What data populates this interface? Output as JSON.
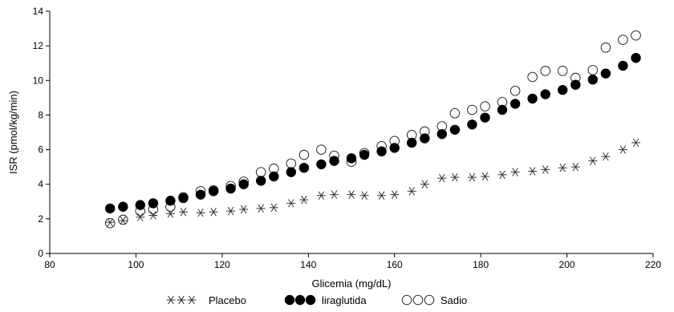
{
  "chart_data": {
    "type": "scatter",
    "xlabel": "Glicemia (mg/dL)",
    "ylabel": "ISR (pmol/kg/min)",
    "xlim": [
      80,
      220
    ],
    "ylim": [
      0,
      14
    ],
    "xticks": [
      80,
      100,
      120,
      140,
      160,
      180,
      200,
      220
    ],
    "yticks": [
      0,
      2,
      4,
      6,
      8,
      10,
      12,
      14
    ],
    "grid": false,
    "legend_position": "bottom",
    "series": [
      {
        "name": "Placebo",
        "marker": "asterisk",
        "points": [
          [
            94,
            1.8
          ],
          [
            97,
            1.9
          ],
          [
            101,
            2.1
          ],
          [
            104,
            2.2
          ],
          [
            108,
            2.3
          ],
          [
            111,
            2.4
          ],
          [
            115,
            2.35
          ],
          [
            118,
            2.4
          ],
          [
            122,
            2.45
          ],
          [
            125,
            2.55
          ],
          [
            129,
            2.6
          ],
          [
            132,
            2.65
          ],
          [
            136,
            2.9
          ],
          [
            139,
            3.1
          ],
          [
            143,
            3.35
          ],
          [
            146,
            3.4
          ],
          [
            150,
            3.4
          ],
          [
            153,
            3.35
          ],
          [
            157,
            3.35
          ],
          [
            160,
            3.4
          ],
          [
            164,
            3.6
          ],
          [
            167,
            4.0
          ],
          [
            171,
            4.35
          ],
          [
            174,
            4.4
          ],
          [
            178,
            4.4
          ],
          [
            181,
            4.45
          ],
          [
            185,
            4.55
          ],
          [
            188,
            4.7
          ],
          [
            192,
            4.75
          ],
          [
            195,
            4.85
          ],
          [
            199,
            4.95
          ],
          [
            202,
            5.0
          ],
          [
            206,
            5.35
          ],
          [
            209,
            5.6
          ],
          [
            213,
            6.0
          ],
          [
            216,
            6.4
          ]
        ]
      },
      {
        "name": "liraglutida",
        "marker": "filled-circle",
        "points": [
          [
            94,
            2.6
          ],
          [
            97,
            2.7
          ],
          [
            101,
            2.8
          ],
          [
            104,
            2.9
          ],
          [
            108,
            3.05
          ],
          [
            111,
            3.2
          ],
          [
            115,
            3.4
          ],
          [
            118,
            3.6
          ],
          [
            122,
            3.75
          ],
          [
            125,
            4.0
          ],
          [
            129,
            4.2
          ],
          [
            132,
            4.45
          ],
          [
            136,
            4.7
          ],
          [
            139,
            4.95
          ],
          [
            143,
            5.15
          ],
          [
            146,
            5.35
          ],
          [
            150,
            5.5
          ],
          [
            153,
            5.7
          ],
          [
            157,
            5.9
          ],
          [
            160,
            6.1
          ],
          [
            164,
            6.4
          ],
          [
            167,
            6.65
          ],
          [
            171,
            6.9
          ],
          [
            174,
            7.15
          ],
          [
            178,
            7.45
          ],
          [
            181,
            7.85
          ],
          [
            185,
            8.3
          ],
          [
            188,
            8.65
          ],
          [
            192,
            8.95
          ],
          [
            195,
            9.2
          ],
          [
            199,
            9.45
          ],
          [
            202,
            9.75
          ],
          [
            206,
            10.05
          ],
          [
            209,
            10.4
          ],
          [
            213,
            10.85
          ],
          [
            216,
            11.3
          ]
        ]
      },
      {
        "name": "Sadio",
        "marker": "open-circle",
        "points": [
          [
            94,
            1.75
          ],
          [
            97,
            1.95
          ],
          [
            101,
            2.45
          ],
          [
            104,
            2.55
          ],
          [
            108,
            2.7
          ],
          [
            111,
            3.25
          ],
          [
            115,
            3.6
          ],
          [
            118,
            3.65
          ],
          [
            122,
            3.9
          ],
          [
            125,
            4.15
          ],
          [
            129,
            4.7
          ],
          [
            132,
            4.9
          ],
          [
            136,
            5.2
          ],
          [
            139,
            5.7
          ],
          [
            143,
            6.0
          ],
          [
            146,
            5.65
          ],
          [
            150,
            5.3
          ],
          [
            153,
            5.8
          ],
          [
            157,
            6.2
          ],
          [
            160,
            6.5
          ],
          [
            164,
            6.85
          ],
          [
            167,
            7.05
          ],
          [
            171,
            7.35
          ],
          [
            174,
            8.1
          ],
          [
            178,
            8.3
          ],
          [
            181,
            8.5
          ],
          [
            185,
            8.75
          ],
          [
            188,
            9.4
          ],
          [
            192,
            10.2
          ],
          [
            195,
            10.55
          ],
          [
            199,
            10.55
          ],
          [
            202,
            10.15
          ],
          [
            206,
            10.6
          ],
          [
            209,
            11.9
          ],
          [
            213,
            12.35
          ],
          [
            216,
            12.6
          ]
        ]
      }
    ]
  }
}
